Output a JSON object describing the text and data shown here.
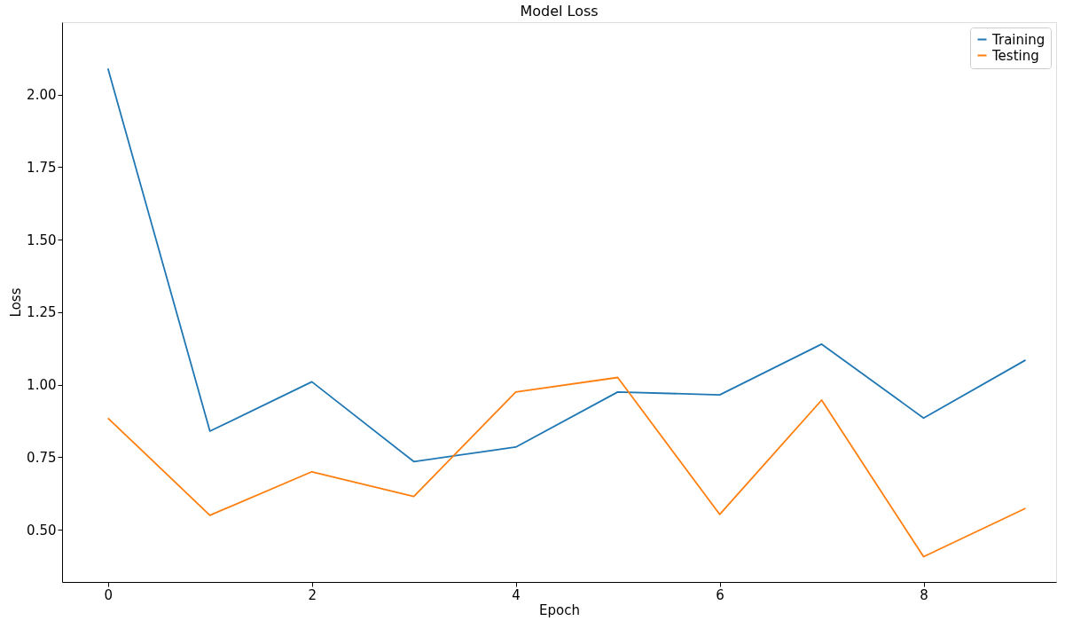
{
  "chart_data": {
    "type": "line",
    "title": "Model Loss",
    "xlabel": "Epoch",
    "ylabel": "Loss",
    "x": [
      0,
      1,
      2,
      3,
      4,
      5,
      6,
      7,
      8,
      9
    ],
    "series": [
      {
        "name": "Training",
        "color": "#1f77b4",
        "values": [
          2.09,
          0.84,
          1.01,
          0.735,
          0.785,
          0.975,
          0.965,
          1.14,
          0.885,
          1.085
        ]
      },
      {
        "name": "Testing",
        "color": "#ff7f0e",
        "values": [
          0.885,
          0.55,
          0.7,
          0.615,
          0.975,
          1.025,
          0.553,
          0.947,
          0.407,
          0.574
        ]
      }
    ],
    "xlim": [
      -0.45,
      9.3
    ],
    "ylim": [
      0.32,
      2.25
    ],
    "xticks": [
      0,
      2,
      4,
      6,
      8
    ],
    "yticks": [
      {
        "value": 0.5,
        "label": "0.50"
      },
      {
        "value": 0.75,
        "label": "0.75"
      },
      {
        "value": 1.0,
        "label": "1.00"
      },
      {
        "value": 1.25,
        "label": "1.25"
      },
      {
        "value": 1.5,
        "label": "1.50"
      },
      {
        "value": 1.75,
        "label": "1.75"
      },
      {
        "value": 2.0,
        "label": "2.00"
      }
    ],
    "legend": "top right",
    "grid": false,
    "marker": "none",
    "line_style": "solid"
  }
}
